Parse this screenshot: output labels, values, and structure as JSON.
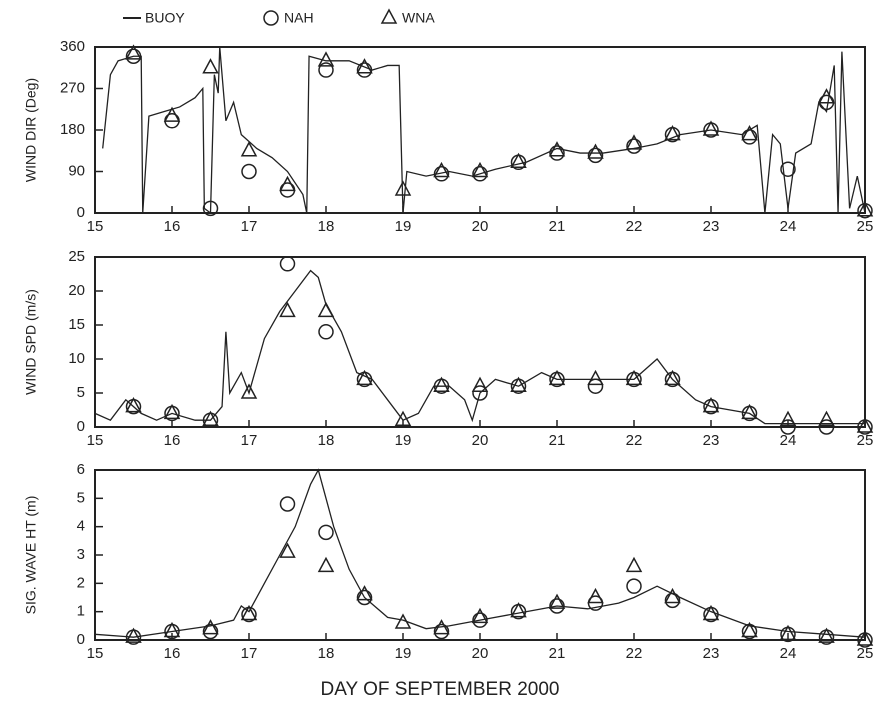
{
  "chart_data": [
    {
      "type": "line",
      "ylabel": "WIND DIR (Deg)",
      "xlim": [
        15,
        25
      ],
      "xticks": [
        15,
        16,
        17,
        18,
        19,
        20,
        21,
        22,
        23,
        24,
        25
      ],
      "ylim": [
        0,
        360
      ],
      "yticks": [
        0,
        90,
        180,
        270,
        360
      ],
      "series": [
        {
          "name": "BUOY",
          "marker": "line",
          "color": "#222222",
          "x": [
            15.1,
            15.2,
            15.3,
            15.5,
            15.6,
            15.62,
            15.7,
            15.9,
            16.1,
            16.3,
            16.4,
            16.42,
            16.5,
            16.55,
            16.6,
            16.62,
            16.7,
            16.8,
            16.9,
            17.1,
            17.3,
            17.5,
            17.7,
            17.75,
            17.78,
            18.0,
            18.3,
            18.6,
            18.8,
            18.95,
            19.0,
            19.05,
            19.3,
            19.6,
            19.9,
            20.2,
            20.6,
            21.0,
            21.3,
            21.6,
            22.0,
            22.3,
            22.6,
            23.0,
            23.4,
            23.6,
            23.7,
            23.8,
            23.9,
            24.0,
            24.1,
            24.3,
            24.4,
            24.5,
            24.6,
            24.65,
            24.7,
            24.8,
            24.9,
            25.0
          ],
          "values": [
            140,
            300,
            330,
            340,
            340,
            0,
            210,
            220,
            230,
            250,
            270,
            10,
            0,
            300,
            260,
            360,
            200,
            240,
            170,
            140,
            120,
            90,
            40,
            0,
            340,
            330,
            330,
            310,
            320,
            320,
            0,
            90,
            80,
            90,
            80,
            95,
            110,
            140,
            130,
            130,
            140,
            150,
            170,
            180,
            170,
            190,
            0,
            170,
            150,
            10,
            130,
            150,
            240,
            220,
            320,
            0,
            350,
            10,
            80,
            0
          ]
        },
        {
          "name": "NAH",
          "marker": "circle",
          "color": "#222222",
          "x": [
            15.5,
            16,
            16.5,
            17,
            17.5,
            18,
            18.5,
            19.5,
            20,
            20.5,
            21,
            21.5,
            22,
            22.5,
            23,
            23.5,
            24,
            24.5,
            25
          ],
          "values": [
            340,
            200,
            10,
            90,
            50,
            310,
            310,
            85,
            85,
            110,
            130,
            125,
            145,
            170,
            180,
            165,
            95,
            240,
            5
          ]
        },
        {
          "name": "WNA",
          "marker": "triangle",
          "color": "#222222",
          "x": [
            15.5,
            16,
            16.5,
            17,
            17.5,
            18,
            18.5,
            19,
            19.5,
            20,
            20.5,
            21,
            21.5,
            22,
            22.5,
            23,
            23.5,
            24.5,
            25
          ],
          "values": [
            345,
            210,
            315,
            135,
            60,
            330,
            315,
            50,
            90,
            90,
            110,
            135,
            130,
            150,
            170,
            180,
            170,
            250,
            5
          ]
        }
      ]
    },
    {
      "type": "line",
      "ylabel": "WIND SPD (m/s)",
      "xlim": [
        15,
        25
      ],
      "xticks": [
        15,
        16,
        17,
        18,
        19,
        20,
        21,
        22,
        23,
        24,
        25
      ],
      "ylim": [
        0,
        25
      ],
      "yticks": [
        0,
        5,
        10,
        15,
        20,
        25
      ],
      "series": [
        {
          "marker": "line",
          "color": "#222222",
          "x": [
            15,
            15.2,
            15.4,
            15.6,
            15.8,
            16.0,
            16.3,
            16.5,
            16.65,
            16.7,
            16.75,
            16.9,
            17.0,
            17.2,
            17.4,
            17.6,
            17.8,
            17.9,
            18.0,
            18.2,
            18.4,
            18.6,
            18.8,
            19.0,
            19.2,
            19.4,
            19.6,
            19.8,
            19.9,
            20.0,
            20.2,
            20.5,
            20.8,
            21.0,
            21.3,
            21.6,
            22.0,
            22.3,
            22.5,
            22.8,
            23.0,
            23.5,
            23.7,
            24.0,
            24.5,
            25
          ],
          "values": [
            2,
            1,
            4,
            2,
            1,
            2,
            1,
            1,
            3,
            14,
            5,
            8,
            5,
            13,
            17,
            20,
            23,
            22,
            18,
            14,
            8,
            7,
            4,
            1,
            2,
            6,
            6,
            4,
            1,
            5,
            7,
            6,
            8,
            7,
            7,
            7,
            7,
            10,
            7,
            4,
            3,
            2,
            0.5,
            0.5,
            0.5,
            0.5
          ]
        },
        {
          "marker": "circle",
          "color": "#222222",
          "x": [
            15.5,
            16,
            16.5,
            17.5,
            18,
            18.5,
            19.5,
            20,
            20.5,
            21,
            21.5,
            22,
            22.5,
            23,
            23.5,
            24,
            24.5,
            25
          ],
          "values": [
            3,
            2,
            1,
            24,
            14,
            7,
            6,
            5,
            6,
            7,
            6,
            7,
            7,
            3,
            2,
            0,
            0,
            0
          ]
        },
        {
          "marker": "triangle",
          "color": "#222222",
          "x": [
            15.5,
            16,
            16.5,
            17,
            17.5,
            18,
            18.5,
            19,
            19.5,
            20,
            20.5,
            21,
            21.5,
            22,
            22.5,
            23,
            23.5,
            24,
            24.5,
            25
          ],
          "values": [
            3,
            2,
            1,
            5,
            17,
            17,
            7,
            1,
            6,
            6,
            6,
            7,
            7,
            7,
            7,
            3,
            2,
            1,
            1,
            0
          ]
        }
      ]
    },
    {
      "type": "line",
      "ylabel": "SIG. WAVE HT (m)",
      "xlabel": "DAY OF SEPTEMBER 2000",
      "xlim": [
        15,
        25
      ],
      "xticks": [
        15,
        16,
        17,
        18,
        19,
        20,
        21,
        22,
        23,
        24,
        25
      ],
      "ylim": [
        0,
        6
      ],
      "yticks": [
        0,
        1,
        2,
        3,
        4,
        5,
        6
      ],
      "series": [
        {
          "marker": "line",
          "color": "#222222",
          "x": [
            15,
            15.5,
            16,
            16.5,
            16.8,
            16.9,
            17,
            17.2,
            17.4,
            17.6,
            17.8,
            17.9,
            18,
            18.1,
            18.3,
            18.5,
            18.8,
            19,
            19.3,
            19.6,
            20,
            20.4,
            20.8,
            21,
            21.4,
            21.8,
            22,
            22.3,
            22.6,
            23,
            23.5,
            24,
            24.5,
            25
          ],
          "values": [
            0.2,
            0.1,
            0.3,
            0.5,
            0.7,
            1.2,
            1.0,
            2,
            3,
            4,
            5.5,
            6,
            5,
            4,
            2.5,
            1.5,
            0.8,
            0.7,
            0.4,
            0.5,
            0.7,
            0.9,
            1.1,
            1.2,
            1.1,
            1.3,
            1.5,
            1.9,
            1.5,
            1.0,
            0.5,
            0.3,
            0.2,
            0.1
          ]
        },
        {
          "marker": "circle",
          "color": "#222222",
          "x": [
            15.5,
            16,
            16.5,
            17,
            17.5,
            18,
            18.5,
            19.5,
            20,
            20.5,
            21,
            21.5,
            22,
            22.5,
            23,
            23.5,
            24,
            24.5,
            25
          ],
          "values": [
            0.1,
            0.3,
            0.3,
            0.9,
            4.8,
            3.8,
            1.5,
            0.3,
            0.7,
            1.0,
            1.2,
            1.3,
            1.9,
            1.4,
            0.9,
            0.3,
            0.2,
            0.1,
            0
          ]
        },
        {
          "marker": "triangle",
          "color": "#222222",
          "x": [
            15.5,
            16,
            16.5,
            17,
            17.5,
            18,
            18.5,
            19,
            19.5,
            20,
            20.5,
            21,
            21.5,
            22,
            22.5,
            23,
            23.5,
            24,
            24.5,
            25
          ],
          "values": [
            0.1,
            0.3,
            0.4,
            0.9,
            3.1,
            2.6,
            1.6,
            0.6,
            0.4,
            0.8,
            1.0,
            1.3,
            1.5,
            2.6,
            1.5,
            0.9,
            0.3,
            0.2,
            0.1,
            0
          ]
        }
      ]
    }
  ]
}
